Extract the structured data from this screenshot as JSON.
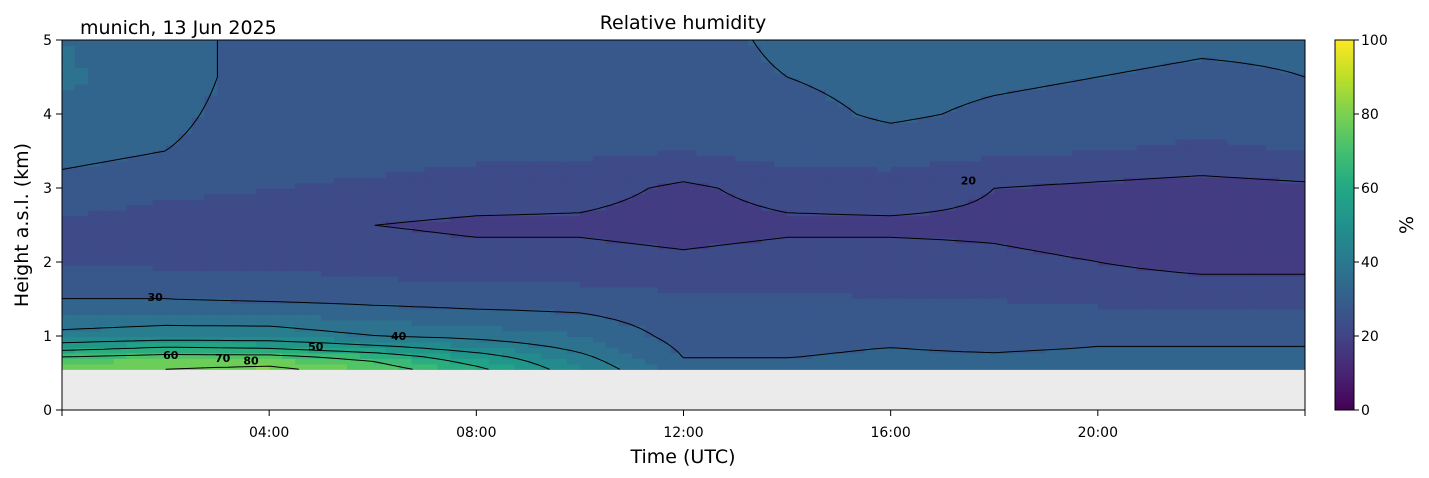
{
  "chart_data": {
    "type": "heatmap",
    "title": "Relative humidity",
    "subtitle": "munich, 13 Jun 2025",
    "xlabel": "Time (UTC)",
    "ylabel": "Height a.s.l. (km)",
    "xlim": [
      0,
      24
    ],
    "ylim": [
      0,
      5
    ],
    "x_ticks": [
      4,
      8,
      12,
      16,
      20
    ],
    "x_tick_labels": [
      "04:00",
      "08:00",
      "12:00",
      "16:00",
      "20:00"
    ],
    "y_ticks": [
      0,
      1,
      2,
      3,
      4,
      5
    ],
    "y_tick_labels": [
      "0",
      "1",
      "2",
      "3",
      "4",
      "5"
    ],
    "colorbar": {
      "label": "%",
      "range": [
        0,
        100
      ],
      "ticks": [
        0,
        20,
        40,
        60,
        80,
        100
      ],
      "tick_labels": [
        "0",
        "20",
        "40",
        "60",
        "80",
        "100"
      ],
      "colormap": "viridis"
    },
    "data_floor_km": 0.55,
    "no_data_color": "#ebebeb",
    "times_utc": [
      0,
      2,
      4,
      6,
      8,
      10,
      12,
      14,
      16,
      18,
      20,
      22,
      24
    ],
    "heights_km": [
      0.55,
      0.7,
      0.85,
      1.0,
      1.5,
      2.0,
      2.5,
      3.0,
      3.5,
      4.0,
      4.5,
      5.0
    ],
    "rh_percent": [
      [
        78,
        80,
        82,
        75,
        62,
        45,
        32,
        32,
        33,
        33,
        35,
        34,
        34
      ],
      [
        72,
        75,
        75,
        68,
        55,
        42,
        30,
        30,
        31,
        31,
        32,
        32,
        32
      ],
      [
        55,
        60,
        58,
        52,
        45,
        38,
        29,
        29,
        30,
        29,
        30,
        30,
        30
      ],
      [
        42,
        44,
        44,
        40,
        38,
        35,
        28,
        28,
        28,
        28,
        29,
        29,
        29
      ],
      [
        30,
        30,
        29,
        28,
        27,
        27,
        26,
        26,
        25,
        25,
        24,
        24,
        24
      ],
      [
        25,
        24,
        24,
        23,
        22,
        22,
        21,
        22,
        22,
        21,
        20,
        18,
        18
      ],
      [
        24,
        23,
        23,
        20,
        19,
        19,
        18,
        19,
        19,
        19,
        18,
        16,
        16
      ],
      [
        28,
        26,
        25,
        24,
        23,
        22,
        19,
        22,
        23,
        20,
        19,
        18,
        19
      ],
      [
        32,
        30,
        28,
        27,
        26,
        26,
        25,
        27,
        27,
        26,
        25,
        24,
        25
      ],
      [
        34,
        31,
        28,
        27,
        27,
        27,
        27,
        28,
        31,
        29,
        28,
        27,
        28
      ],
      [
        36,
        32,
        28,
        28,
        27,
        27,
        28,
        30,
        32,
        31,
        30,
        29,
        30
      ],
      [
        35,
        32,
        28,
        28,
        27,
        27,
        28,
        31,
        34,
        33,
        32,
        31,
        31
      ]
    ],
    "contour_levels": [
      20,
      30,
      40,
      50,
      60,
      70,
      80
    ],
    "contour_labels": [
      {
        "text": "20",
        "t": 17.5,
        "h": 3.1
      },
      {
        "text": "30",
        "t": 1.8,
        "h": 1.53
      },
      {
        "text": "40",
        "t": 6.5,
        "h": 1.0
      },
      {
        "text": "50",
        "t": 4.9,
        "h": 0.86
      },
      {
        "text": "60",
        "t": 2.1,
        "h": 0.74
      },
      {
        "text": "70",
        "t": 3.1,
        "h": 0.7
      },
      {
        "text": "80",
        "t": 3.65,
        "h": 0.67
      }
    ]
  }
}
